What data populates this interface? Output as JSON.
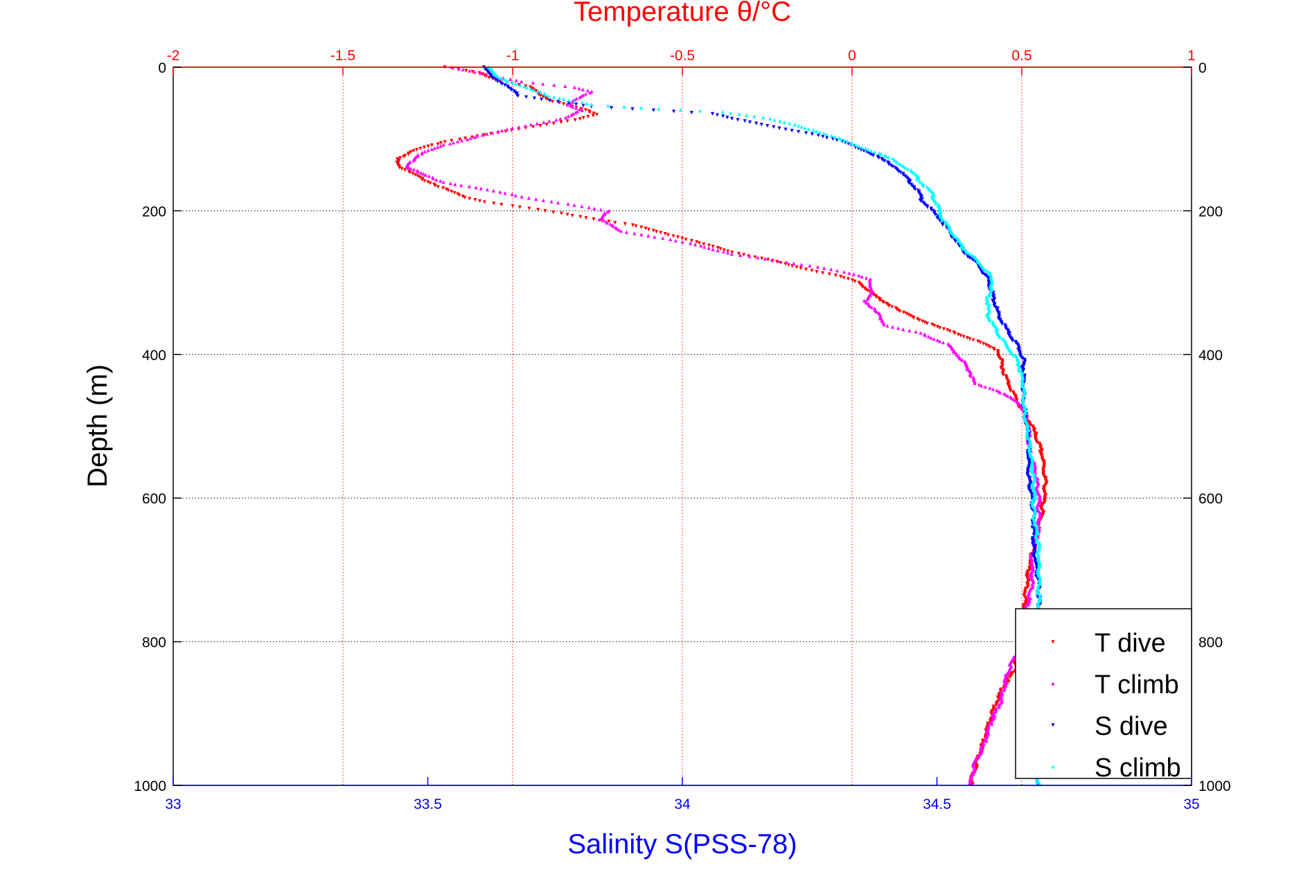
{
  "chart_data": {
    "type": "scatter",
    "title": "Temperature θ/°C",
    "ylabel": "Depth (m)",
    "xlabel_bottom": "Salinity S(PSS-78)",
    "x_bottom": {
      "lim": [
        33,
        35
      ],
      "ticks": [
        33,
        33.5,
        34,
        34.5,
        35
      ],
      "tick_labels": [
        "33",
        "33.5",
        "34",
        "34.5",
        "35"
      ],
      "color": "#0000ff"
    },
    "x_top": {
      "lim": [
        -2,
        1
      ],
      "ticks": [
        -2,
        -1.5,
        -1,
        -0.5,
        0,
        0.5,
        1
      ],
      "tick_labels": [
        "-2",
        "-1.5",
        "-1",
        "-0.5",
        "0",
        "0.5",
        "1"
      ],
      "color": "#ff0000"
    },
    "y": {
      "lim": [
        0,
        1000
      ],
      "reversed": true,
      "ticks": [
        0,
        200,
        400,
        600,
        800,
        1000
      ],
      "tick_labels": [
        "0",
        "200",
        "400",
        "600",
        "800",
        "1000"
      ]
    },
    "grid": true,
    "legend_position": "bottom-right",
    "series": [
      {
        "name": "T dive",
        "axis": "top",
        "color": "#ff0000",
        "marker": "triangle-down",
        "points": [
          [
            -1.2,
            0
          ],
          [
            -1.1,
            8
          ],
          [
            -1.05,
            18
          ],
          [
            -0.95,
            28
          ],
          [
            -0.92,
            38
          ],
          [
            -0.88,
            48
          ],
          [
            -0.8,
            58
          ],
          [
            -0.75,
            66
          ],
          [
            -0.8,
            72
          ],
          [
            -0.9,
            80
          ],
          [
            -1.0,
            88
          ],
          [
            -1.1,
            96
          ],
          [
            -1.2,
            104
          ],
          [
            -1.28,
            115
          ],
          [
            -1.34,
            128
          ],
          [
            -1.33,
            140
          ],
          [
            -1.27,
            155
          ],
          [
            -1.2,
            170
          ],
          [
            -1.15,
            180
          ],
          [
            -1.08,
            188
          ],
          [
            -0.98,
            195
          ],
          [
            -0.88,
            202
          ],
          [
            -0.78,
            210
          ],
          [
            -0.65,
            220
          ],
          [
            -0.55,
            232
          ],
          [
            -0.45,
            245
          ],
          [
            -0.35,
            258
          ],
          [
            -0.25,
            268
          ],
          [
            -0.15,
            280
          ],
          [
            -0.05,
            290
          ],
          [
            0.02,
            300
          ],
          [
            0.07,
            320
          ],
          [
            0.14,
            340
          ],
          [
            0.24,
            360
          ],
          [
            0.36,
            380
          ],
          [
            0.43,
            395
          ],
          [
            0.45,
            430
          ],
          [
            0.49,
            470
          ],
          [
            0.53,
            500
          ],
          [
            0.56,
            540
          ],
          [
            0.57,
            580
          ],
          [
            0.56,
            620
          ],
          [
            0.54,
            660
          ],
          [
            0.52,
            700
          ],
          [
            0.51,
            740
          ],
          [
            0.5,
            780
          ],
          [
            0.49,
            810
          ],
          [
            0.48,
            840
          ],
          [
            0.45,
            860
          ],
          [
            0.42,
            890
          ],
          [
            0.4,
            920
          ],
          [
            0.38,
            950
          ],
          [
            0.36,
            980
          ],
          [
            0.35,
            1000
          ]
        ]
      },
      {
        "name": "T climb",
        "axis": "top",
        "color": "#ff00ff",
        "marker": "triangle-up",
        "points": [
          [
            -1.18,
            0
          ],
          [
            -1.08,
            10
          ],
          [
            -0.97,
            20
          ],
          [
            -0.82,
            28
          ],
          [
            -0.77,
            34
          ],
          [
            -0.8,
            42
          ],
          [
            -0.84,
            52
          ],
          [
            -0.8,
            60
          ],
          [
            -0.84,
            70
          ],
          [
            -1.0,
            85
          ],
          [
            -1.1,
            96
          ],
          [
            -1.2,
            108
          ],
          [
            -1.28,
            122
          ],
          [
            -1.31,
            138
          ],
          [
            -1.26,
            150
          ],
          [
            -1.2,
            160
          ],
          [
            -1.06,
            172
          ],
          [
            -0.95,
            182
          ],
          [
            -0.82,
            192
          ],
          [
            -0.72,
            200
          ],
          [
            -0.74,
            212
          ],
          [
            -0.68,
            228
          ],
          [
            -0.56,
            238
          ],
          [
            -0.48,
            245
          ],
          [
            -0.42,
            252
          ],
          [
            -0.35,
            260
          ],
          [
            -0.28,
            265
          ],
          [
            -0.22,
            270
          ],
          [
            -0.1,
            278
          ],
          [
            -0.02,
            285
          ],
          [
            0.05,
            295
          ],
          [
            0.06,
            310
          ],
          [
            0.04,
            325
          ],
          [
            0.08,
            345
          ],
          [
            0.1,
            360
          ],
          [
            0.2,
            370
          ],
          [
            0.28,
            385
          ],
          [
            0.32,
            405
          ],
          [
            0.35,
            425
          ],
          [
            0.36,
            440
          ],
          [
            0.43,
            450
          ],
          [
            0.5,
            470
          ],
          [
            0.52,
            500
          ],
          [
            0.52,
            530
          ],
          [
            0.54,
            560
          ],
          [
            0.55,
            600
          ],
          [
            0.55,
            640
          ],
          [
            0.53,
            680
          ],
          [
            0.53,
            720
          ],
          [
            0.51,
            760
          ],
          [
            0.5,
            800
          ],
          [
            0.46,
            840
          ],
          [
            0.44,
            880
          ],
          [
            0.41,
            910
          ],
          [
            0.39,
            940
          ],
          [
            0.36,
            970
          ],
          [
            0.35,
            1000
          ]
        ]
      },
      {
        "name": "S dive",
        "axis": "bottom",
        "color": "#0000ff",
        "marker": "triangle-down",
        "points": [
          [
            33.61,
            0
          ],
          [
            33.62,
            10
          ],
          [
            33.64,
            20
          ],
          [
            33.66,
            30
          ],
          [
            33.68,
            40
          ],
          [
            33.82,
            55
          ],
          [
            34.06,
            65
          ],
          [
            34.12,
            75
          ],
          [
            34.19,
            85
          ],
          [
            34.27,
            95
          ],
          [
            34.32,
            105
          ],
          [
            34.37,
            120
          ],
          [
            34.42,
            140
          ],
          [
            34.44,
            155
          ],
          [
            34.46,
            170
          ],
          [
            34.47,
            185
          ],
          [
            34.49,
            200
          ],
          [
            34.51,
            215
          ],
          [
            34.53,
            235
          ],
          [
            34.55,
            255
          ],
          [
            34.58,
            275
          ],
          [
            34.6,
            295
          ],
          [
            34.61,
            320
          ],
          [
            34.62,
            345
          ],
          [
            34.64,
            370
          ],
          [
            34.66,
            390
          ],
          [
            34.67,
            410
          ],
          [
            34.67,
            440
          ],
          [
            34.67,
            470
          ],
          [
            34.68,
            520
          ],
          [
            34.68,
            570
          ],
          [
            34.69,
            620
          ],
          [
            34.69,
            670
          ],
          [
            34.7,
            720
          ],
          [
            34.7,
            770
          ],
          [
            34.7,
            820
          ],
          [
            34.7,
            870
          ],
          [
            34.7,
            920
          ],
          [
            34.7,
            960
          ],
          [
            34.7,
            1000
          ]
        ]
      },
      {
        "name": "S climb",
        "axis": "bottom",
        "color": "#00ffff",
        "marker": "triangle-up",
        "points": [
          [
            33.62,
            0
          ],
          [
            33.63,
            10
          ],
          [
            33.66,
            20
          ],
          [
            33.7,
            30
          ],
          [
            33.74,
            40
          ],
          [
            33.82,
            52
          ],
          [
            33.95,
            58
          ],
          [
            34.08,
            62
          ],
          [
            34.16,
            70
          ],
          [
            34.22,
            80
          ],
          [
            34.28,
            92
          ],
          [
            34.33,
            105
          ],
          [
            34.38,
            118
          ],
          [
            34.42,
            130
          ],
          [
            34.45,
            145
          ],
          [
            34.47,
            160
          ],
          [
            34.49,
            175
          ],
          [
            34.5,
            190
          ],
          [
            34.51,
            210
          ],
          [
            34.53,
            230
          ],
          [
            34.55,
            250
          ],
          [
            34.58,
            270
          ],
          [
            34.6,
            285
          ],
          [
            34.61,
            300
          ],
          [
            34.6,
            320
          ],
          [
            34.6,
            345
          ],
          [
            34.62,
            370
          ],
          [
            34.64,
            390
          ],
          [
            34.66,
            410
          ],
          [
            34.67,
            440
          ],
          [
            34.67,
            470
          ],
          [
            34.68,
            520
          ],
          [
            34.69,
            570
          ],
          [
            34.69,
            620
          ],
          [
            34.7,
            670
          ],
          [
            34.7,
            720
          ],
          [
            34.7,
            770
          ],
          [
            34.7,
            820
          ],
          [
            34.7,
            870
          ],
          [
            34.7,
            920
          ],
          [
            34.7,
            960
          ],
          [
            34.7,
            1000
          ]
        ]
      }
    ]
  }
}
